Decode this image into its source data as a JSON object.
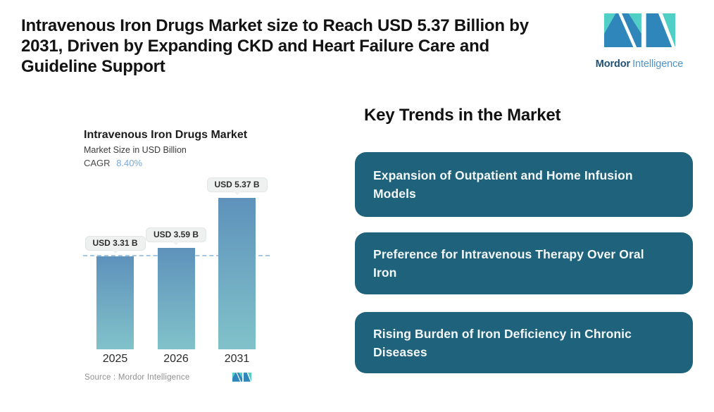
{
  "header": {
    "title_lines": [
      "Intravenous Iron Drugs Market size to Reach USD 5.37 Billion by",
      "2031, Driven by Expanding CKD and Heart Failure Care and",
      "Guideline Support"
    ],
    "logo": {
      "brand_bold": "Mordor",
      "brand_light": "Intelligence"
    }
  },
  "chart": {
    "title": "Intravenous Iron Drugs Market",
    "subtitle": "Market Size in USD Billion",
    "cagr_label": "CAGR",
    "cagr_value": "8.40%",
    "source_text": "Source :  Mordor Intelligence"
  },
  "chart_data": {
    "type": "bar",
    "title": "Intravenous Iron Drugs Market",
    "ylabel": "Market Size in USD Billion",
    "cagr": "8.40%",
    "categories": [
      "2025",
      "2026",
      "2031"
    ],
    "values": [
      3.31,
      3.59,
      5.37
    ],
    "bar_labels": [
      "USD 3.31 B",
      "USD 3.59 B",
      "USD 5.37 B"
    ],
    "reference_line": 3.31,
    "ylim": [
      0,
      5.5
    ],
    "grid": false,
    "legend": "none",
    "colors": {
      "bar_gradient_top": "#5E92BB",
      "bar_gradient_bottom": "#81C2CA",
      "dashed_reference_line": "#A7C7E1",
      "value_pill_bg": "#EFF1F1",
      "cagr_value": "#7AA9D7"
    }
  },
  "key_trends": {
    "heading": "Key Trends in the Market",
    "box_color": "#1F627B",
    "items": [
      {
        "text": "Expansion of Outpatient and Home Infusion Models"
      },
      {
        "text": "Preference for Intravenous Therapy Over Oral Iron"
      },
      {
        "text": "Rising Burden of Iron Deficiency in Chronic Diseases"
      }
    ]
  }
}
